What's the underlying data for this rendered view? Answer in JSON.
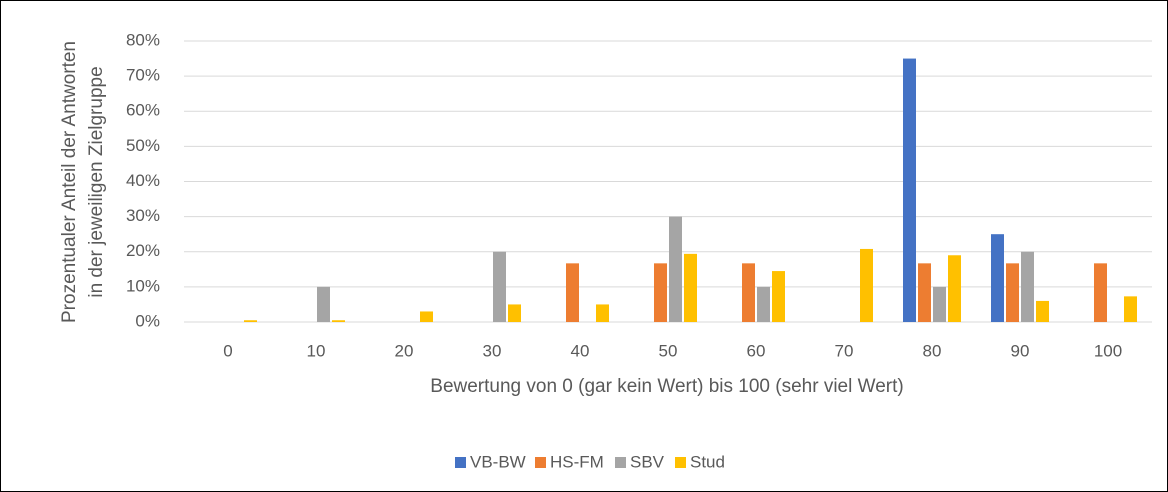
{
  "chart_data": {
    "type": "bar",
    "y_axis_label": [
      "Prozentualer Anteil der Antworten",
      "in der jeweiligen Zielgruppe"
    ],
    "x_axis_label": "Bewertung von 0 (gar kein Wert) bis 100 (sehr viel Wert)",
    "categories": [
      "0",
      "10",
      "20",
      "30",
      "40",
      "50",
      "60",
      "70",
      "80",
      "90",
      "100"
    ],
    "series": [
      {
        "name": "VB-BW",
        "color": "#4472c4",
        "values": [
          0,
          0,
          0,
          0,
          0,
          0,
          0,
          0,
          75,
          25,
          0
        ]
      },
      {
        "name": "HS-FM",
        "color": "#ed7d31",
        "values": [
          0,
          0,
          0,
          0,
          16.7,
          16.7,
          16.7,
          0,
          16.7,
          16.7,
          16.7
        ]
      },
      {
        "name": "SBV",
        "color": "#a5a5a5",
        "values": [
          0,
          10,
          0,
          20,
          0,
          30,
          10,
          0,
          10,
          20,
          0
        ]
      },
      {
        "name": "Stud",
        "color": "#ffc000",
        "values": [
          0.5,
          0.5,
          3,
          5,
          5,
          19.4,
          14.5,
          20.8,
          19,
          6,
          7.3
        ]
      }
    ],
    "ylim": [
      0,
      80
    ],
    "yticks": [
      {
        "value": 0,
        "label": "0%"
      },
      {
        "value": 10,
        "label": "10%"
      },
      {
        "value": 20,
        "label": "20%"
      },
      {
        "value": 30,
        "label": "30%"
      },
      {
        "value": 40,
        "label": "40%"
      },
      {
        "value": 50,
        "label": "50%"
      },
      {
        "value": 60,
        "label": "60%"
      },
      {
        "value": 70,
        "label": "70%"
      },
      {
        "value": 80,
        "label": "80%"
      }
    ],
    "grid": true,
    "legend": "bottom"
  }
}
